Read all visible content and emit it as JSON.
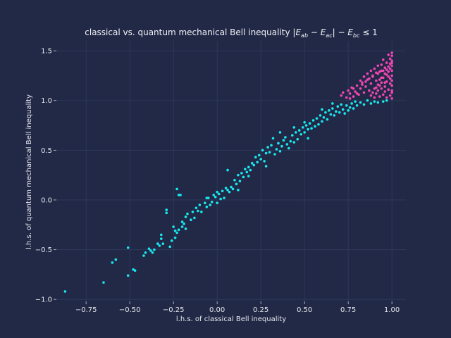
{
  "chart_data": {
    "type": "scatter",
    "title": "classical vs. quantum mechanical Bell inequality |E_ab − E_ac| − E_bc ≤ 1",
    "title_parts": {
      "prefix": "classical vs. quantum mechanical Bell inequality ",
      "formula": "|E",
      "sub1": "ab",
      "minus1": " − E",
      "sub2": "ac",
      "minus2": "| − E",
      "sub3": "bc",
      "suffix": " ≤ 1"
    },
    "xlabel": "l.h.s. of classical Bell inequality",
    "ylabel": "l.h.s. of quantum mechanical Bell inequality",
    "xlim": [
      -0.92,
      1.08
    ],
    "ylim": [
      -1.02,
      1.6
    ],
    "xticks": [
      -0.75,
      -0.5,
      -0.25,
      0.0,
      0.25,
      0.5,
      0.75,
      1.0
    ],
    "xtick_labels": [
      "−0.75",
      "−0.50",
      "−0.25",
      "0.00",
      "0.25",
      "0.50",
      "0.75",
      "1.00"
    ],
    "yticks": [
      -1.0,
      -0.5,
      0.0,
      0.5,
      1.0,
      1.5
    ],
    "ytick_labels": [
      "−1.0",
      "−0.5",
      "0.0",
      "0.5",
      "1.0",
      "1.5"
    ],
    "grid": true,
    "colors": {
      "background": "#212946",
      "grid": "#2f3a5e",
      "satisfied": "#18e8f0",
      "violated": "#f046b4"
    },
    "series": [
      {
        "color": "#18e8f0",
        "points": [
          [
            -0.87,
            -0.92
          ],
          [
            -0.65,
            -0.83
          ],
          [
            -0.6,
            -0.63
          ],
          [
            -0.58,
            -0.6
          ],
          [
            -0.51,
            -0.76
          ],
          [
            -0.51,
            -0.48
          ],
          [
            -0.48,
            -0.7
          ],
          [
            -0.47,
            -0.71
          ],
          [
            -0.42,
            -0.56
          ],
          [
            -0.41,
            -0.53
          ],
          [
            -0.39,
            -0.49
          ],
          [
            -0.38,
            -0.51
          ],
          [
            -0.37,
            -0.53
          ],
          [
            -0.36,
            -0.5
          ],
          [
            -0.34,
            -0.44
          ],
          [
            -0.33,
            -0.46
          ],
          [
            -0.32,
            -0.35
          ],
          [
            -0.32,
            -0.39
          ],
          [
            -0.31,
            -0.44
          ],
          [
            -0.29,
            -0.1
          ],
          [
            -0.29,
            -0.13
          ],
          [
            -0.27,
            -0.47
          ],
          [
            -0.26,
            -0.41
          ],
          [
            -0.25,
            -0.27
          ],
          [
            -0.24,
            -0.31
          ],
          [
            -0.24,
            -0.38
          ],
          [
            -0.23,
            0.11
          ],
          [
            -0.22,
            0.05
          ],
          [
            -0.21,
            0.05
          ],
          [
            -0.23,
            -0.33
          ],
          [
            -0.22,
            -0.3
          ],
          [
            -0.2,
            -0.27
          ],
          [
            -0.2,
            -0.22
          ],
          [
            -0.19,
            -0.24
          ],
          [
            -0.18,
            -0.17
          ],
          [
            -0.18,
            -0.29
          ],
          [
            -0.17,
            -0.14
          ],
          [
            -0.15,
            -0.2
          ],
          [
            -0.14,
            -0.12
          ],
          [
            -0.13,
            -0.18
          ],
          [
            -0.12,
            -0.08
          ],
          [
            -0.11,
            -0.11
          ],
          [
            -0.1,
            -0.05
          ],
          [
            -0.09,
            -0.12
          ],
          [
            -0.07,
            -0.03
          ],
          [
            -0.06,
            -0.07
          ],
          [
            -0.05,
            0.02
          ],
          [
            -0.04,
            -0.05
          ],
          [
            -0.03,
            -0.02
          ],
          [
            -0.02,
            0.05
          ],
          [
            -0.01,
            0.03
          ],
          [
            0.0,
            -0.03
          ],
          [
            0.01,
            0.06
          ],
          [
            0.02,
            0.01
          ],
          [
            0.03,
            0.09
          ],
          [
            0.04,
            0.02
          ],
          [
            0.05,
            0.12
          ],
          [
            0.06,
            0.1
          ],
          [
            0.06,
            0.3
          ],
          [
            0.07,
            0.08
          ],
          [
            0.08,
            0.13
          ],
          [
            0.09,
            0.11
          ],
          [
            0.1,
            0.2
          ],
          [
            0.11,
            0.16
          ],
          [
            0.12,
            0.25
          ],
          [
            0.13,
            0.19
          ],
          [
            0.14,
            0.27
          ],
          [
            0.15,
            0.23
          ],
          [
            0.16,
            0.31
          ],
          [
            0.17,
            0.28
          ],
          [
            0.18,
            0.33
          ],
          [
            0.19,
            0.3
          ],
          [
            0.2,
            0.37
          ],
          [
            0.21,
            0.35
          ],
          [
            0.22,
            0.43
          ],
          [
            0.23,
            0.38
          ],
          [
            0.24,
            0.45
          ],
          [
            0.25,
            0.41
          ],
          [
            0.26,
            0.5
          ],
          [
            0.27,
            0.39
          ],
          [
            0.28,
            0.47
          ],
          [
            0.29,
            0.53
          ],
          [
            0.3,
            0.48
          ],
          [
            0.31,
            0.55
          ],
          [
            0.32,
            0.62
          ],
          [
            0.33,
            0.46
          ],
          [
            0.34,
            0.51
          ],
          [
            0.35,
            0.57
          ],
          [
            0.36,
            0.49
          ],
          [
            0.37,
            0.54
          ],
          [
            0.38,
            0.6
          ],
          [
            0.39,
            0.63
          ],
          [
            0.4,
            0.56
          ],
          [
            0.41,
            0.52
          ],
          [
            0.42,
            0.59
          ],
          [
            0.43,
            0.65
          ],
          [
            0.44,
            0.58
          ],
          [
            0.45,
            0.68
          ],
          [
            0.46,
            0.61
          ],
          [
            0.47,
            0.7
          ],
          [
            0.48,
            0.66
          ],
          [
            0.49,
            0.73
          ],
          [
            0.5,
            0.68
          ],
          [
            0.51,
            0.75
          ],
          [
            0.52,
            0.71
          ],
          [
            0.53,
            0.77
          ],
          [
            0.54,
            0.72
          ],
          [
            0.55,
            0.8
          ],
          [
            0.56,
            0.74
          ],
          [
            0.57,
            0.82
          ],
          [
            0.58,
            0.76
          ],
          [
            0.59,
            0.85
          ],
          [
            0.6,
            0.79
          ],
          [
            0.61,
            0.83
          ],
          [
            0.62,
            0.88
          ],
          [
            0.63,
            0.81
          ],
          [
            0.64,
            0.9
          ],
          [
            0.65,
            0.86
          ],
          [
            0.66,
            0.92
          ],
          [
            0.67,
            0.85
          ],
          [
            0.68,
            0.89
          ],
          [
            0.69,
            0.94
          ],
          [
            0.7,
            0.88
          ],
          [
            0.71,
            0.96
          ],
          [
            0.72,
            0.91
          ],
          [
            0.73,
            0.87
          ],
          [
            0.74,
            0.95
          ],
          [
            0.75,
            0.9
          ],
          [
            0.76,
            0.93
          ],
          [
            0.77,
            0.97
          ],
          [
            0.78,
            0.92
          ],
          [
            0.79,
            0.99
          ],
          [
            0.8,
            0.95
          ],
          [
            0.82,
            0.98
          ],
          [
            0.84,
            0.96
          ],
          [
            0.86,
            1.0
          ],
          [
            0.88,
            0.97
          ],
          [
            0.9,
            0.99
          ],
          [
            0.92,
            0.98
          ],
          [
            0.95,
            0.99
          ],
          [
            0.97,
            1.0
          ],
          [
            0.28,
            0.34
          ],
          [
            0.12,
            0.1
          ],
          [
            -0.06,
            0.02
          ],
          [
            0.44,
            0.73
          ],
          [
            0.52,
            0.62
          ],
          [
            0.6,
            0.91
          ],
          [
            0.36,
            0.68
          ],
          [
            0.18,
            0.24
          ],
          [
            0.0,
            0.08
          ],
          [
            0.5,
            0.78
          ],
          [
            0.66,
            0.97
          ]
        ]
      },
      {
        "color": "#f046b4",
        "points": [
          [
            0.71,
            1.05
          ],
          [
            0.72,
            1.08
          ],
          [
            0.74,
            1.03
          ],
          [
            0.75,
            1.1
          ],
          [
            0.76,
            1.07
          ],
          [
            0.77,
            1.13
          ],
          [
            0.78,
            1.04
          ],
          [
            0.79,
            1.09
          ],
          [
            0.8,
            1.15
          ],
          [
            0.81,
            1.06
          ],
          [
            0.82,
            1.12
          ],
          [
            0.83,
            1.18
          ],
          [
            0.84,
            1.08
          ],
          [
            0.85,
            1.14
          ],
          [
            0.86,
            1.21
          ],
          [
            0.87,
            1.1
          ],
          [
            0.88,
            1.17
          ],
          [
            0.89,
            1.24
          ],
          [
            0.9,
            1.12
          ],
          [
            0.91,
            1.2
          ],
          [
            0.92,
            1.27
          ],
          [
            0.93,
            1.15
          ],
          [
            0.94,
            1.23
          ],
          [
            0.95,
            1.3
          ],
          [
            0.96,
            1.18
          ],
          [
            0.97,
            1.26
          ],
          [
            0.98,
            1.34
          ],
          [
            0.99,
            1.22
          ],
          [
            1.0,
            1.4
          ],
          [
            1.0,
            1.02
          ],
          [
            1.0,
            1.08
          ],
          [
            1.0,
            1.15
          ],
          [
            1.0,
            1.2
          ],
          [
            1.0,
            1.25
          ],
          [
            1.0,
            1.3
          ],
          [
            1.0,
            1.35
          ],
          [
            1.0,
            1.45
          ],
          [
            1.0,
            1.48
          ],
          [
            0.99,
            1.42
          ],
          [
            0.98,
            1.46
          ],
          [
            0.97,
            1.38
          ],
          [
            0.96,
            1.33
          ],
          [
            0.95,
            1.41
          ],
          [
            0.94,
            1.36
          ],
          [
            0.93,
            1.29
          ],
          [
            0.92,
            1.35
          ],
          [
            0.91,
            1.28
          ],
          [
            0.9,
            1.32
          ],
          [
            0.89,
            1.25
          ],
          [
            0.88,
            1.3
          ],
          [
            0.87,
            1.22
          ],
          [
            0.86,
            1.27
          ],
          [
            0.85,
            1.19
          ],
          [
            0.84,
            1.24
          ],
          [
            0.83,
            1.16
          ],
          [
            0.82,
            1.2
          ],
          [
            0.8,
            1.07
          ],
          [
            0.78,
            1.12
          ],
          [
            0.76,
            1.02
          ],
          [
            0.99,
            1.05
          ],
          [
            0.98,
            1.11
          ],
          [
            0.97,
            1.03
          ],
          [
            0.96,
            1.09
          ],
          [
            0.95,
            1.06
          ],
          [
            0.94,
            1.12
          ],
          [
            0.93,
            1.04
          ],
          [
            0.92,
            1.1
          ],
          [
            0.91,
            1.07
          ],
          [
            0.9,
            1.03
          ],
          [
            0.89,
            1.08
          ],
          [
            0.88,
            1.05
          ],
          [
            0.99,
            1.17
          ],
          [
            0.98,
            1.24
          ],
          [
            0.97,
            1.19
          ],
          [
            0.96,
            1.27
          ],
          [
            0.95,
            1.23
          ],
          [
            0.94,
            1.18
          ],
          [
            0.93,
            1.21
          ],
          [
            0.92,
            1.16
          ],
          [
            0.91,
            1.13
          ],
          [
            0.99,
            1.32
          ],
          [
            0.98,
            1.29
          ],
          [
            0.97,
            1.31
          ],
          [
            1.0,
            1.1
          ],
          [
            1.0,
            1.38
          ],
          [
            0.99,
            1.37
          ],
          [
            0.96,
            1.14
          ],
          [
            0.94,
            1.3
          ]
        ]
      }
    ]
  }
}
